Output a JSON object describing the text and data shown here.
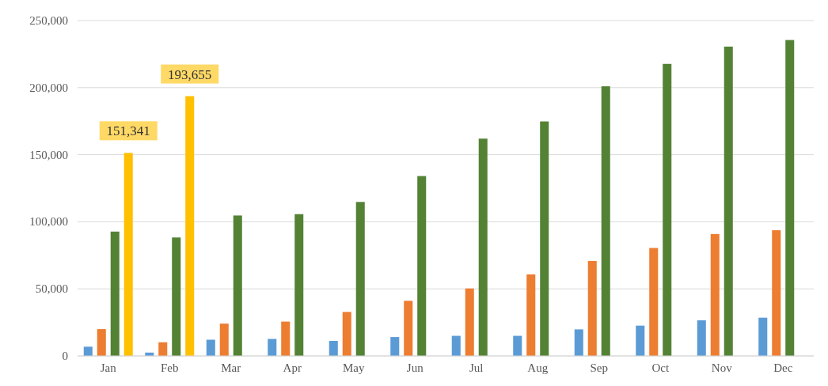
{
  "chart_data": {
    "type": "bar",
    "categories": [
      "Jan",
      "Feb",
      "Mar",
      "Apr",
      "May",
      "Jun",
      "Jul",
      "Aug",
      "Sep",
      "Oct",
      "Nov",
      "Dec"
    ],
    "series": [
      {
        "color": "#5b9bd5",
        "values": [
          6900,
          2500,
          12100,
          12700,
          11200,
          14100,
          15000,
          15000,
          19800,
          22600,
          26600,
          28500
        ]
      },
      {
        "color": "#ed7d31",
        "values": [
          20000,
          10200,
          24100,
          25600,
          32800,
          41100,
          50300,
          60800,
          70800,
          80500,
          90900,
          93700
        ]
      },
      {
        "color": "#548235",
        "values": [
          92700,
          88300,
          104700,
          105700,
          114800,
          134100,
          162000,
          174800,
          201000,
          217700,
          230600,
          235500
        ]
      },
      {
        "color": "#ffc000",
        "values": [
          151341,
          193655,
          null,
          null,
          null,
          null,
          null,
          null,
          null,
          null,
          null,
          null
        ],
        "value_labels": [
          "151,341",
          "193,655",
          null,
          null,
          null,
          null,
          null,
          null,
          null,
          null,
          null,
          null
        ]
      }
    ],
    "ylim": [
      0,
      250000
    ],
    "yticks": [
      {
        "value": 0,
        "label": "0"
      },
      {
        "value": 50000,
        "label": "50,000"
      },
      {
        "value": 100000,
        "label": "100,000"
      },
      {
        "value": 150000,
        "label": "150,000"
      },
      {
        "value": 200000,
        "label": "200,000"
      },
      {
        "value": 250000,
        "label": "250,000"
      }
    ],
    "grid": "y"
  }
}
